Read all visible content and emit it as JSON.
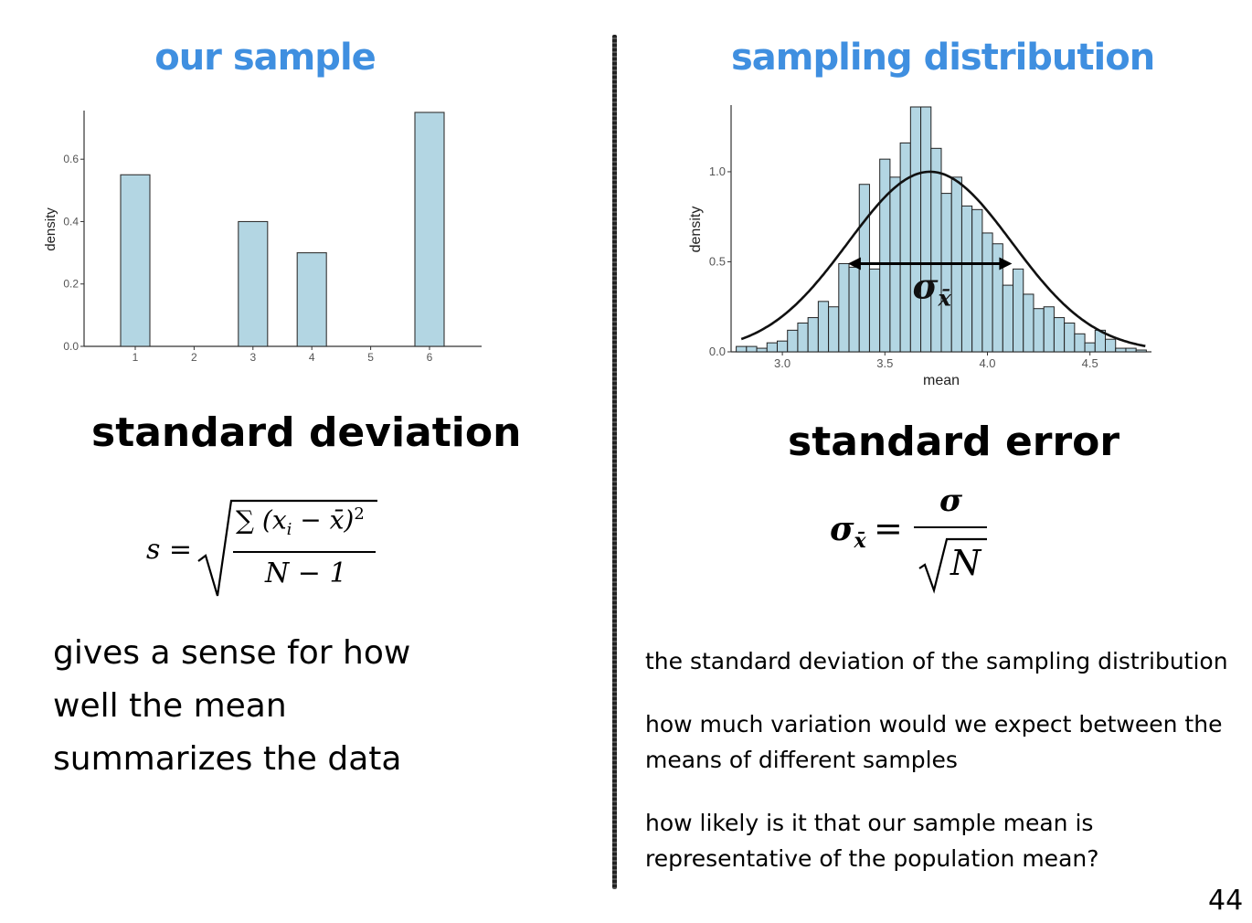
{
  "left": {
    "title": "our sample",
    "heading": "standard deviation",
    "formula": {
      "lhs": "s =",
      "numerator": "∑ (x",
      "numerator_sub": "i",
      "numerator_mid": " − x̄)",
      "numerator_sup": "2",
      "denominator": "N − 1"
    },
    "description_lines": [
      "gives a sense for how",
      "well the mean",
      "summarizes the data"
    ]
  },
  "right": {
    "title": "sampling distribution",
    "heading": "standard error",
    "formula": {
      "lhs": "σ",
      "lhs_sub": "x̄",
      "equals": "=",
      "numerator": "σ",
      "denominator": "N"
    },
    "arrow_label": "σ",
    "arrow_label_sub": "x̄",
    "paragraphs": [
      [
        "the standard deviation of the sampling distribution"
      ],
      [
        "how much variation would we expect between the",
        "means of different samples"
      ],
      [
        "how likely is it that our sample mean is",
        "representative of the population mean?"
      ]
    ]
  },
  "page_number": "44",
  "colors": {
    "title": "#3f8fe0",
    "bar_fill": "#b3d6e3",
    "bar_stroke": "#333333"
  },
  "chart_data": [
    {
      "type": "bar",
      "title": "our sample",
      "xlabel": "",
      "ylabel": "density",
      "categories": [
        "1",
        "2",
        "3",
        "4",
        "5",
        "6"
      ],
      "values": [
        0.55,
        0,
        0.4,
        0.3,
        0,
        0.75
      ],
      "yticks": [
        0.0,
        0.2,
        0.4,
        0.6
      ],
      "ytick_labels": [
        "0.0",
        "0.2",
        "0.4",
        "0.6"
      ],
      "ylim": [
        0,
        0.75
      ],
      "grid": false
    },
    {
      "type": "bar",
      "title": "sampling distribution",
      "xlabel": "mean",
      "ylabel": "density",
      "xlim": [
        2.75,
        4.8
      ],
      "ylim": [
        0,
        1.36
      ],
      "xticks": [
        3.0,
        3.5,
        4.0,
        4.5
      ],
      "xtick_labels": [
        "3.0",
        "3.5",
        "4.0",
        "4.5"
      ],
      "yticks": [
        0.0,
        0.5,
        1.0
      ],
      "ytick_labels": [
        "0.0",
        "0.5",
        "1.0"
      ],
      "bin_start": 2.775,
      "bin_width": 0.05,
      "values": [
        0.03,
        0.03,
        0.02,
        0.05,
        0.06,
        0.12,
        0.16,
        0.19,
        0.28,
        0.25,
        0.49,
        0.47,
        0.93,
        0.46,
        1.07,
        0.97,
        1.16,
        1.36,
        1.36,
        1.13,
        0.88,
        0.97,
        0.81,
        0.79,
        0.66,
        0.6,
        0.37,
        0.46,
        0.32,
        0.24,
        0.25,
        0.19,
        0.16,
        0.1,
        0.05,
        0.12,
        0.07,
        0.02,
        0.02,
        0.01
      ],
      "curve": {
        "type": "normal",
        "mean": 3.72,
        "sd": 0.4,
        "peak": 1.0
      },
      "arrow": {
        "from": 3.32,
        "to": 4.12,
        "y": 0.49
      },
      "grid": false
    }
  ]
}
